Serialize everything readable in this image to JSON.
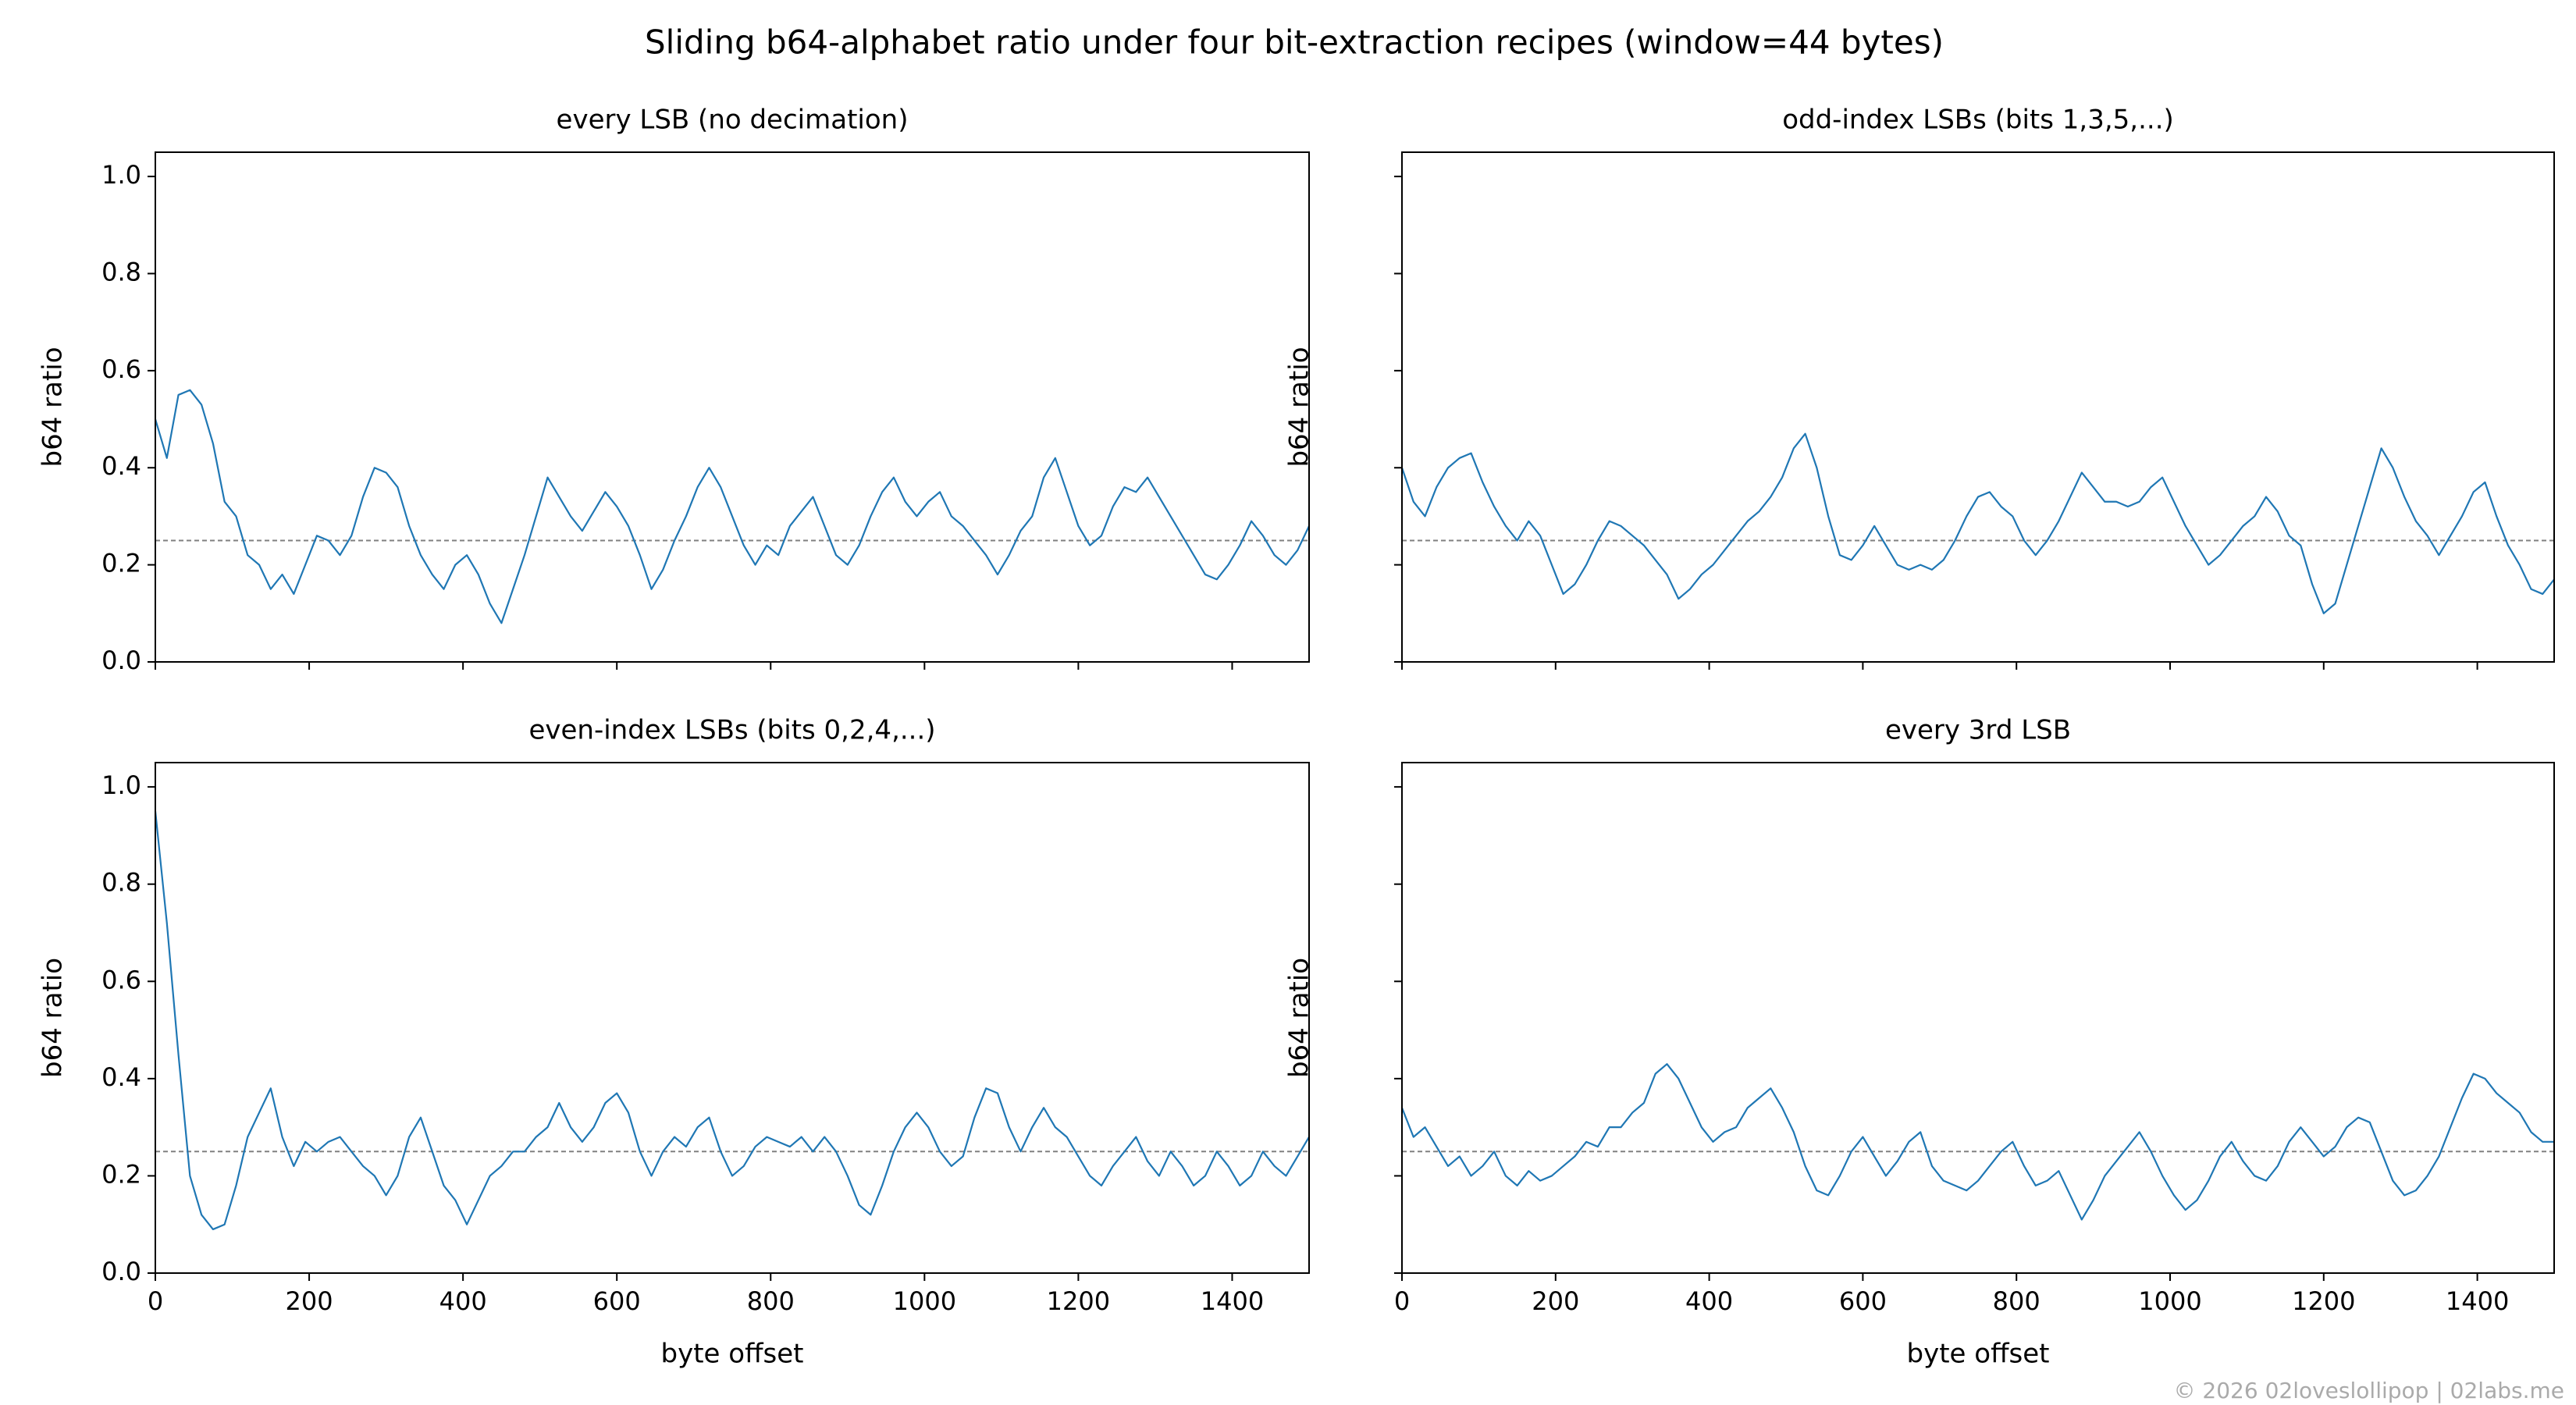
{
  "title": "Sliding b64-alphabet ratio under four bit-extraction recipes (window=44 bytes)",
  "footer": "© 2026 02loveslollipop | 02labs.me",
  "chart_data": [
    {
      "type": "line",
      "title": "every LSB (no decimation)",
      "ylabel": "b64 ratio",
      "xlim": [
        0,
        1500
      ],
      "ylim": [
        0,
        1.05
      ],
      "xticks": [
        0,
        200,
        400,
        600,
        800,
        1000,
        1200,
        1400
      ],
      "yticks": [
        {
          "value": 0,
          "label": "0.0"
        },
        0.2,
        0.4,
        0.6,
        0.8,
        {
          "value": 1,
          "label": "1.0"
        }
      ],
      "show_xticklabels": false,
      "show_yticklabels": true,
      "hline": 0.25,
      "hline_color": "#808080",
      "color": "#1f77b4",
      "x": [
        0,
        15,
        30,
        45,
        60,
        75,
        90,
        105,
        120,
        135,
        150,
        165,
        180,
        195,
        210,
        225,
        240,
        255,
        270,
        285,
        300,
        315,
        330,
        345,
        360,
        375,
        390,
        405,
        420,
        435,
        450,
        465,
        480,
        495,
        510,
        525,
        540,
        555,
        570,
        585,
        600,
        615,
        630,
        645,
        660,
        675,
        690,
        705,
        720,
        735,
        750,
        765,
        780,
        795,
        810,
        825,
        840,
        855,
        870,
        885,
        900,
        915,
        930,
        945,
        960,
        975,
        990,
        1005,
        1020,
        1035,
        1050,
        1065,
        1080,
        1095,
        1110,
        1125,
        1140,
        1155,
        1170,
        1185,
        1200,
        1215,
        1230,
        1245,
        1260,
        1275,
        1290,
        1305,
        1320,
        1335,
        1350,
        1365,
        1380,
        1395,
        1410,
        1425,
        1440,
        1455,
        1470,
        1485,
        1500
      ],
      "values": [
        0.5,
        0.42,
        0.55,
        0.56,
        0.53,
        0.45,
        0.33,
        0.3,
        0.22,
        0.2,
        0.15,
        0.18,
        0.14,
        0.2,
        0.26,
        0.25,
        0.22,
        0.26,
        0.34,
        0.4,
        0.39,
        0.36,
        0.28,
        0.22,
        0.18,
        0.15,
        0.2,
        0.22,
        0.18,
        0.12,
        0.08,
        0.15,
        0.22,
        0.3,
        0.38,
        0.34,
        0.3,
        0.27,
        0.31,
        0.35,
        0.32,
        0.28,
        0.22,
        0.15,
        0.19,
        0.25,
        0.3,
        0.36,
        0.4,
        0.36,
        0.3,
        0.24,
        0.2,
        0.24,
        0.22,
        0.28,
        0.31,
        0.34,
        0.28,
        0.22,
        0.2,
        0.24,
        0.3,
        0.35,
        0.38,
        0.33,
        0.3,
        0.33,
        0.35,
        0.3,
        0.28,
        0.25,
        0.22,
        0.18,
        0.22,
        0.27,
        0.3,
        0.38,
        0.42,
        0.35,
        0.28,
        0.24,
        0.26,
        0.32,
        0.36,
        0.35,
        0.38,
        0.34,
        0.3,
        0.26,
        0.22,
        0.18,
        0.17,
        0.2,
        0.24,
        0.29,
        0.26,
        0.22,
        0.2,
        0.23,
        0.28
      ]
    },
    {
      "type": "line",
      "title": "odd-index LSBs (bits 1,3,5,...)",
      "ylabel": "b64 ratio",
      "xlim": [
        0,
        1500
      ],
      "ylim": [
        0,
        1.05
      ],
      "xticks": [
        0,
        200,
        400,
        600,
        800,
        1000,
        1200,
        1400
      ],
      "yticks": [
        0,
        0.2,
        0.4,
        0.6,
        0.8,
        1
      ],
      "show_xticklabels": false,
      "show_yticklabels": false,
      "hline": 0.25,
      "hline_color": "#808080",
      "color": "#1f77b4",
      "x": [
        0,
        15,
        30,
        45,
        60,
        75,
        90,
        105,
        120,
        135,
        150,
        165,
        180,
        195,
        210,
        225,
        240,
        255,
        270,
        285,
        300,
        315,
        330,
        345,
        360,
        375,
        390,
        405,
        420,
        435,
        450,
        465,
        480,
        495,
        510,
        525,
        540,
        555,
        570,
        585,
        600,
        615,
        630,
        645,
        660,
        675,
        690,
        705,
        720,
        735,
        750,
        765,
        780,
        795,
        810,
        825,
        840,
        855,
        870,
        885,
        900,
        915,
        930,
        945,
        960,
        975,
        990,
        1005,
        1020,
        1035,
        1050,
        1065,
        1080,
        1095,
        1110,
        1125,
        1140,
        1155,
        1170,
        1185,
        1200,
        1215,
        1230,
        1245,
        1260,
        1275,
        1290,
        1305,
        1320,
        1335,
        1350,
        1365,
        1380,
        1395,
        1410,
        1425,
        1440,
        1455,
        1470,
        1485,
        1500
      ],
      "values": [
        0.4,
        0.33,
        0.3,
        0.36,
        0.4,
        0.42,
        0.43,
        0.37,
        0.32,
        0.28,
        0.25,
        0.29,
        0.26,
        0.2,
        0.14,
        0.16,
        0.2,
        0.25,
        0.29,
        0.28,
        0.26,
        0.24,
        0.21,
        0.18,
        0.13,
        0.15,
        0.18,
        0.2,
        0.23,
        0.26,
        0.29,
        0.31,
        0.34,
        0.38,
        0.44,
        0.47,
        0.4,
        0.3,
        0.22,
        0.21,
        0.24,
        0.28,
        0.24,
        0.2,
        0.19,
        0.2,
        0.19,
        0.21,
        0.25,
        0.3,
        0.34,
        0.35,
        0.32,
        0.3,
        0.25,
        0.22,
        0.25,
        0.29,
        0.34,
        0.39,
        0.36,
        0.33,
        0.33,
        0.32,
        0.33,
        0.36,
        0.38,
        0.33,
        0.28,
        0.24,
        0.2,
        0.22,
        0.25,
        0.28,
        0.3,
        0.34,
        0.31,
        0.26,
        0.24,
        0.16,
        0.1,
        0.12,
        0.2,
        0.28,
        0.36,
        0.44,
        0.4,
        0.34,
        0.29,
        0.26,
        0.22,
        0.26,
        0.3,
        0.35,
        0.37,
        0.3,
        0.24,
        0.2,
        0.15,
        0.14,
        0.17
      ]
    },
    {
      "type": "line",
      "title": "even-index LSBs (bits 0,2,4,...)",
      "ylabel": "b64 ratio",
      "xlabel": "byte offset",
      "xlim": [
        0,
        1500
      ],
      "ylim": [
        0,
        1.05
      ],
      "xticks": [
        0,
        200,
        400,
        600,
        800,
        1000,
        1200,
        1400
      ],
      "yticks": [
        {
          "value": 0,
          "label": "0.0"
        },
        0.2,
        0.4,
        0.6,
        0.8,
        {
          "value": 1,
          "label": "1.0"
        }
      ],
      "show_xticklabels": true,
      "show_yticklabels": true,
      "hline": 0.25,
      "hline_color": "#808080",
      "color": "#1f77b4",
      "x": [
        0,
        15,
        30,
        45,
        60,
        75,
        90,
        105,
        120,
        135,
        150,
        165,
        180,
        195,
        210,
        225,
        240,
        255,
        270,
        285,
        300,
        315,
        330,
        345,
        360,
        375,
        390,
        405,
        420,
        435,
        450,
        465,
        480,
        495,
        510,
        525,
        540,
        555,
        570,
        585,
        600,
        615,
        630,
        645,
        660,
        675,
        690,
        705,
        720,
        735,
        750,
        765,
        780,
        795,
        810,
        825,
        840,
        855,
        870,
        885,
        900,
        915,
        930,
        945,
        960,
        975,
        990,
        1005,
        1020,
        1035,
        1050,
        1065,
        1080,
        1095,
        1110,
        1125,
        1140,
        1155,
        1170,
        1185,
        1200,
        1215,
        1230,
        1245,
        1260,
        1275,
        1290,
        1305,
        1320,
        1335,
        1350,
        1365,
        1380,
        1395,
        1410,
        1425,
        1440,
        1455,
        1470,
        1485,
        1500
      ],
      "values": [
        0.95,
        0.72,
        0.45,
        0.2,
        0.12,
        0.09,
        0.1,
        0.18,
        0.28,
        0.33,
        0.38,
        0.28,
        0.22,
        0.27,
        0.25,
        0.27,
        0.28,
        0.25,
        0.22,
        0.2,
        0.16,
        0.2,
        0.28,
        0.32,
        0.25,
        0.18,
        0.15,
        0.1,
        0.15,
        0.2,
        0.22,
        0.25,
        0.25,
        0.28,
        0.3,
        0.35,
        0.3,
        0.27,
        0.3,
        0.35,
        0.37,
        0.33,
        0.25,
        0.2,
        0.25,
        0.28,
        0.26,
        0.3,
        0.32,
        0.25,
        0.2,
        0.22,
        0.26,
        0.28,
        0.27,
        0.26,
        0.28,
        0.25,
        0.28,
        0.25,
        0.2,
        0.14,
        0.12,
        0.18,
        0.25,
        0.3,
        0.33,
        0.3,
        0.25,
        0.22,
        0.24,
        0.32,
        0.38,
        0.37,
        0.3,
        0.25,
        0.3,
        0.34,
        0.3,
        0.28,
        0.24,
        0.2,
        0.18,
        0.22,
        0.25,
        0.28,
        0.23,
        0.2,
        0.25,
        0.22,
        0.18,
        0.2,
        0.25,
        0.22,
        0.18,
        0.2,
        0.25,
        0.22,
        0.2,
        0.24,
        0.28
      ]
    },
    {
      "type": "line",
      "title": "every 3rd LSB",
      "ylabel": "b64 ratio",
      "xlabel": "byte offset",
      "xlim": [
        0,
        1500
      ],
      "ylim": [
        0,
        1.05
      ],
      "xticks": [
        0,
        200,
        400,
        600,
        800,
        1000,
        1200,
        1400
      ],
      "yticks": [
        0,
        0.2,
        0.4,
        0.6,
        0.8,
        1
      ],
      "show_xticklabels": true,
      "show_yticklabels": false,
      "hline": 0.25,
      "hline_color": "#808080",
      "color": "#1f77b4",
      "x": [
        0,
        15,
        30,
        45,
        60,
        75,
        90,
        105,
        120,
        135,
        150,
        165,
        180,
        195,
        210,
        225,
        240,
        255,
        270,
        285,
        300,
        315,
        330,
        345,
        360,
        375,
        390,
        405,
        420,
        435,
        450,
        465,
        480,
        495,
        510,
        525,
        540,
        555,
        570,
        585,
        600,
        615,
        630,
        645,
        660,
        675,
        690,
        705,
        720,
        735,
        750,
        765,
        780,
        795,
        810,
        825,
        840,
        855,
        870,
        885,
        900,
        915,
        930,
        945,
        960,
        975,
        990,
        1005,
        1020,
        1035,
        1050,
        1065,
        1080,
        1095,
        1110,
        1125,
        1140,
        1155,
        1170,
        1185,
        1200,
        1215,
        1230,
        1245,
        1260,
        1275,
        1290,
        1305,
        1320,
        1335,
        1350,
        1365,
        1380,
        1395,
        1410,
        1425,
        1440,
        1455,
        1470,
        1485,
        1500
      ],
      "values": [
        0.34,
        0.28,
        0.3,
        0.26,
        0.22,
        0.24,
        0.2,
        0.22,
        0.25,
        0.2,
        0.18,
        0.21,
        0.19,
        0.2,
        0.22,
        0.24,
        0.27,
        0.26,
        0.3,
        0.3,
        0.33,
        0.35,
        0.41,
        0.43,
        0.4,
        0.35,
        0.3,
        0.27,
        0.29,
        0.3,
        0.34,
        0.36,
        0.38,
        0.34,
        0.29,
        0.22,
        0.17,
        0.16,
        0.2,
        0.25,
        0.28,
        0.24,
        0.2,
        0.23,
        0.27,
        0.29,
        0.22,
        0.19,
        0.18,
        0.17,
        0.19,
        0.22,
        0.25,
        0.27,
        0.22,
        0.18,
        0.19,
        0.21,
        0.16,
        0.11,
        0.15,
        0.2,
        0.23,
        0.26,
        0.29,
        0.25,
        0.2,
        0.16,
        0.13,
        0.15,
        0.19,
        0.24,
        0.27,
        0.23,
        0.2,
        0.19,
        0.22,
        0.27,
        0.3,
        0.27,
        0.24,
        0.26,
        0.3,
        0.32,
        0.31,
        0.25,
        0.19,
        0.16,
        0.17,
        0.2,
        0.24,
        0.3,
        0.36,
        0.41,
        0.4,
        0.37,
        0.35,
        0.33,
        0.29,
        0.27,
        0.27
      ]
    }
  ]
}
